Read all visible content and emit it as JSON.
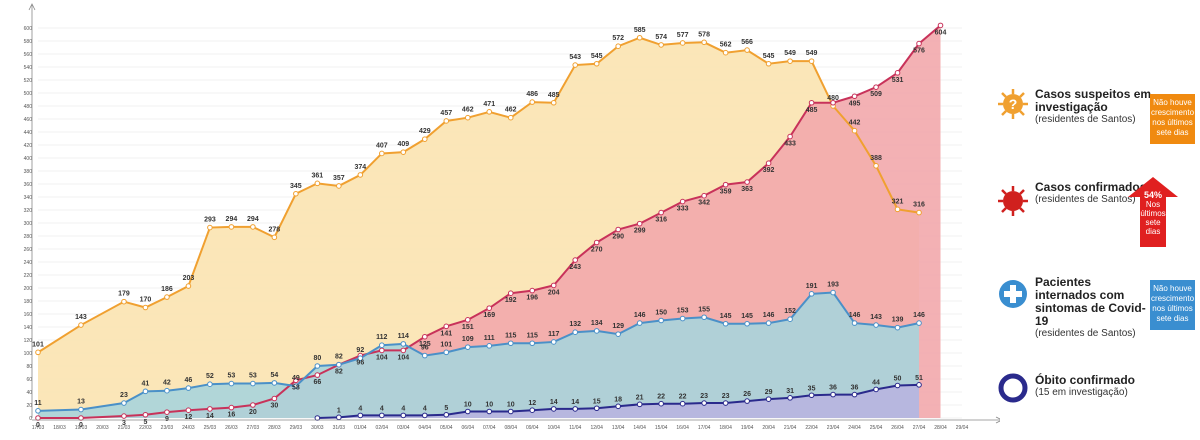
{
  "chart_data": {
    "type": "line",
    "x": [
      "17/03",
      "18/03",
      "19/03",
      "20/03",
      "21/03",
      "22/03",
      "23/03",
      "24/03",
      "25/03",
      "26/03",
      "27/03",
      "28/03",
      "29/03",
      "30/03",
      "31/03",
      "01/04",
      "02/04",
      "03/04",
      "04/04",
      "05/04",
      "06/04",
      "07/04",
      "08/04",
      "09/04",
      "10/04",
      "11/04",
      "12/04",
      "13/04",
      "14/04",
      "15/04",
      "16/04",
      "17/04",
      "18/04",
      "19/04",
      "20/04",
      "21/04",
      "22/04",
      "23/04",
      "24/04",
      "25/04",
      "26/04",
      "27/04",
      "28/04",
      "29/04"
    ],
    "ylim": [
      0,
      620
    ],
    "y_ticks": [
      0,
      20,
      40,
      60,
      80,
      100,
      120,
      140,
      160,
      180,
      200,
      220,
      240,
      260,
      280,
      300,
      320,
      340,
      360,
      380,
      400,
      420,
      440,
      460,
      480,
      500,
      520,
      540,
      560,
      580,
      600
    ],
    "series": [
      {
        "name": "Casos suspeitos em investigação",
        "color": "#f0a030",
        "fill": "#fbe3b0",
        "values": [
          101,
          null,
          143,
          null,
          179,
          170,
          186,
          203,
          293,
          294,
          294,
          278,
          345,
          361,
          357,
          374,
          407,
          409,
          429,
          457,
          462,
          471,
          462,
          486,
          485,
          543,
          545,
          572,
          585,
          574,
          577,
          578,
          562,
          566,
          545,
          549,
          549,
          480,
          442,
          388,
          321,
          316,
          null,
          null
        ],
        "labels": [
          "101",
          "",
          "143",
          "",
          "179",
          "170",
          "186",
          "203",
          "293",
          "294",
          "294",
          "278",
          "345",
          "361",
          "357",
          "374",
          "407",
          "409",
          "429",
          "457",
          "462",
          "471",
          "462",
          "486",
          "485",
          "543",
          "545",
          "572",
          "585",
          "574",
          "577",
          "578",
          "562",
          "566",
          "545",
          "549",
          "549",
          "480",
          "442",
          "388",
          "321",
          "316",
          "",
          ""
        ]
      },
      {
        "name": "Casos confirmados",
        "color": "#c8325a",
        "fill": "#f2a8ac",
        "values": [
          0,
          null,
          0,
          null,
          3,
          5,
          9,
          12,
          14,
          16,
          20,
          30,
          58,
          66,
          82,
          96,
          104,
          104,
          125,
          141,
          151,
          169,
          192,
          196,
          204,
          243,
          270,
          290,
          299,
          316,
          333,
          342,
          359,
          363,
          392,
          433,
          485,
          485,
          495,
          509,
          531,
          576,
          604,
          null
        ],
        "labels": [
          "0",
          "",
          "0",
          "",
          "3",
          "5",
          "9",
          "12",
          "14",
          "16",
          "20",
          "30",
          "58",
          "66",
          "82",
          "96",
          "104",
          "104",
          "125",
          "141",
          "151",
          "169",
          "192",
          "196",
          "204",
          "243",
          "270",
          "290",
          "299",
          "316",
          "333",
          "342",
          "359",
          "363",
          "392",
          "433",
          "485",
          "",
          "495",
          "509",
          "531",
          "576",
          "604",
          ""
        ]
      },
      {
        "name": "Pacientes internados com sintomas de Covid-19",
        "color": "#4a90c8",
        "fill": "#a8d4dc",
        "values": [
          11,
          null,
          13,
          null,
          23,
          41,
          42,
          46,
          52,
          53,
          53,
          54,
          49,
          80,
          82,
          92,
          112,
          114,
          96,
          101,
          109,
          111,
          115,
          115,
          117,
          132,
          134,
          129,
          146,
          150,
          153,
          155,
          145,
          145,
          146,
          152,
          191,
          193,
          146,
          143,
          139,
          146,
          null,
          null
        ],
        "labels": [
          "11",
          "",
          "13",
          "",
          "23",
          "41",
          "42",
          "46",
          "52",
          "53",
          "53",
          "54",
          "49",
          "80",
          "82",
          "92",
          "112",
          "114",
          "96",
          "101",
          "109",
          "111",
          "115",
          "115",
          "117",
          "132",
          "134",
          "129",
          "146",
          "150",
          "153",
          "155",
          "145",
          "145",
          "146",
          "152",
          "191",
          "193",
          "146",
          "143",
          "139",
          "146",
          "",
          ""
        ]
      },
      {
        "name": "Óbito confirmado",
        "color": "#2a2a8c",
        "fill": "#b8b4e0",
        "values": [
          null,
          null,
          null,
          null,
          null,
          null,
          null,
          null,
          null,
          null,
          null,
          null,
          null,
          0,
          1,
          4,
          4,
          4,
          4,
          5,
          10,
          10,
          10,
          12,
          14,
          14,
          15,
          18,
          21,
          22,
          22,
          23,
          23,
          26,
          29,
          31,
          35,
          36,
          36,
          44,
          50,
          51,
          null,
          null
        ],
        "labels": [
          "",
          "",
          "",
          "",
          "",
          "",
          "",
          "",
          "",
          "",
          "",
          "",
          "",
          "",
          "1",
          "4",
          "4",
          "4",
          "4",
          "5",
          "10",
          "10",
          "10",
          "12",
          "14",
          "14",
          "15",
          "18",
          "21",
          "22",
          "22",
          "23",
          "23",
          "26",
          "29",
          "31",
          "35",
          "36",
          "36",
          "44",
          "50",
          "51",
          "",
          ""
        ]
      }
    ],
    "legend_placement": "right"
  },
  "legend": {
    "suspeitos": {
      "title": "Casos suspeitos em investigação",
      "sub": "(residentes de Santos)",
      "badge": "Não houve crescimento nos últimos sete dias",
      "badge_color": "#f08a10",
      "icon": "question-virus-icon"
    },
    "confirmados": {
      "title": "Casos confirmados",
      "sub": "(residentes de Santos)",
      "badge_pct": "54%",
      "badge": "Nos últimos sete dias",
      "badge_color": "#e02020",
      "icon": "virus-icon"
    },
    "internados": {
      "title": "Pacientes internados com sintomas de Covid-19",
      "sub": "(residentes de Santos)",
      "badge": "Não houve crescimento nos últimos sete dias",
      "badge_color": "#3a8ed0",
      "icon": "cross-icon"
    },
    "obito": {
      "title": "Óbito confirmado",
      "sub": "(15 em investigação)",
      "icon": "circle-icon"
    }
  }
}
